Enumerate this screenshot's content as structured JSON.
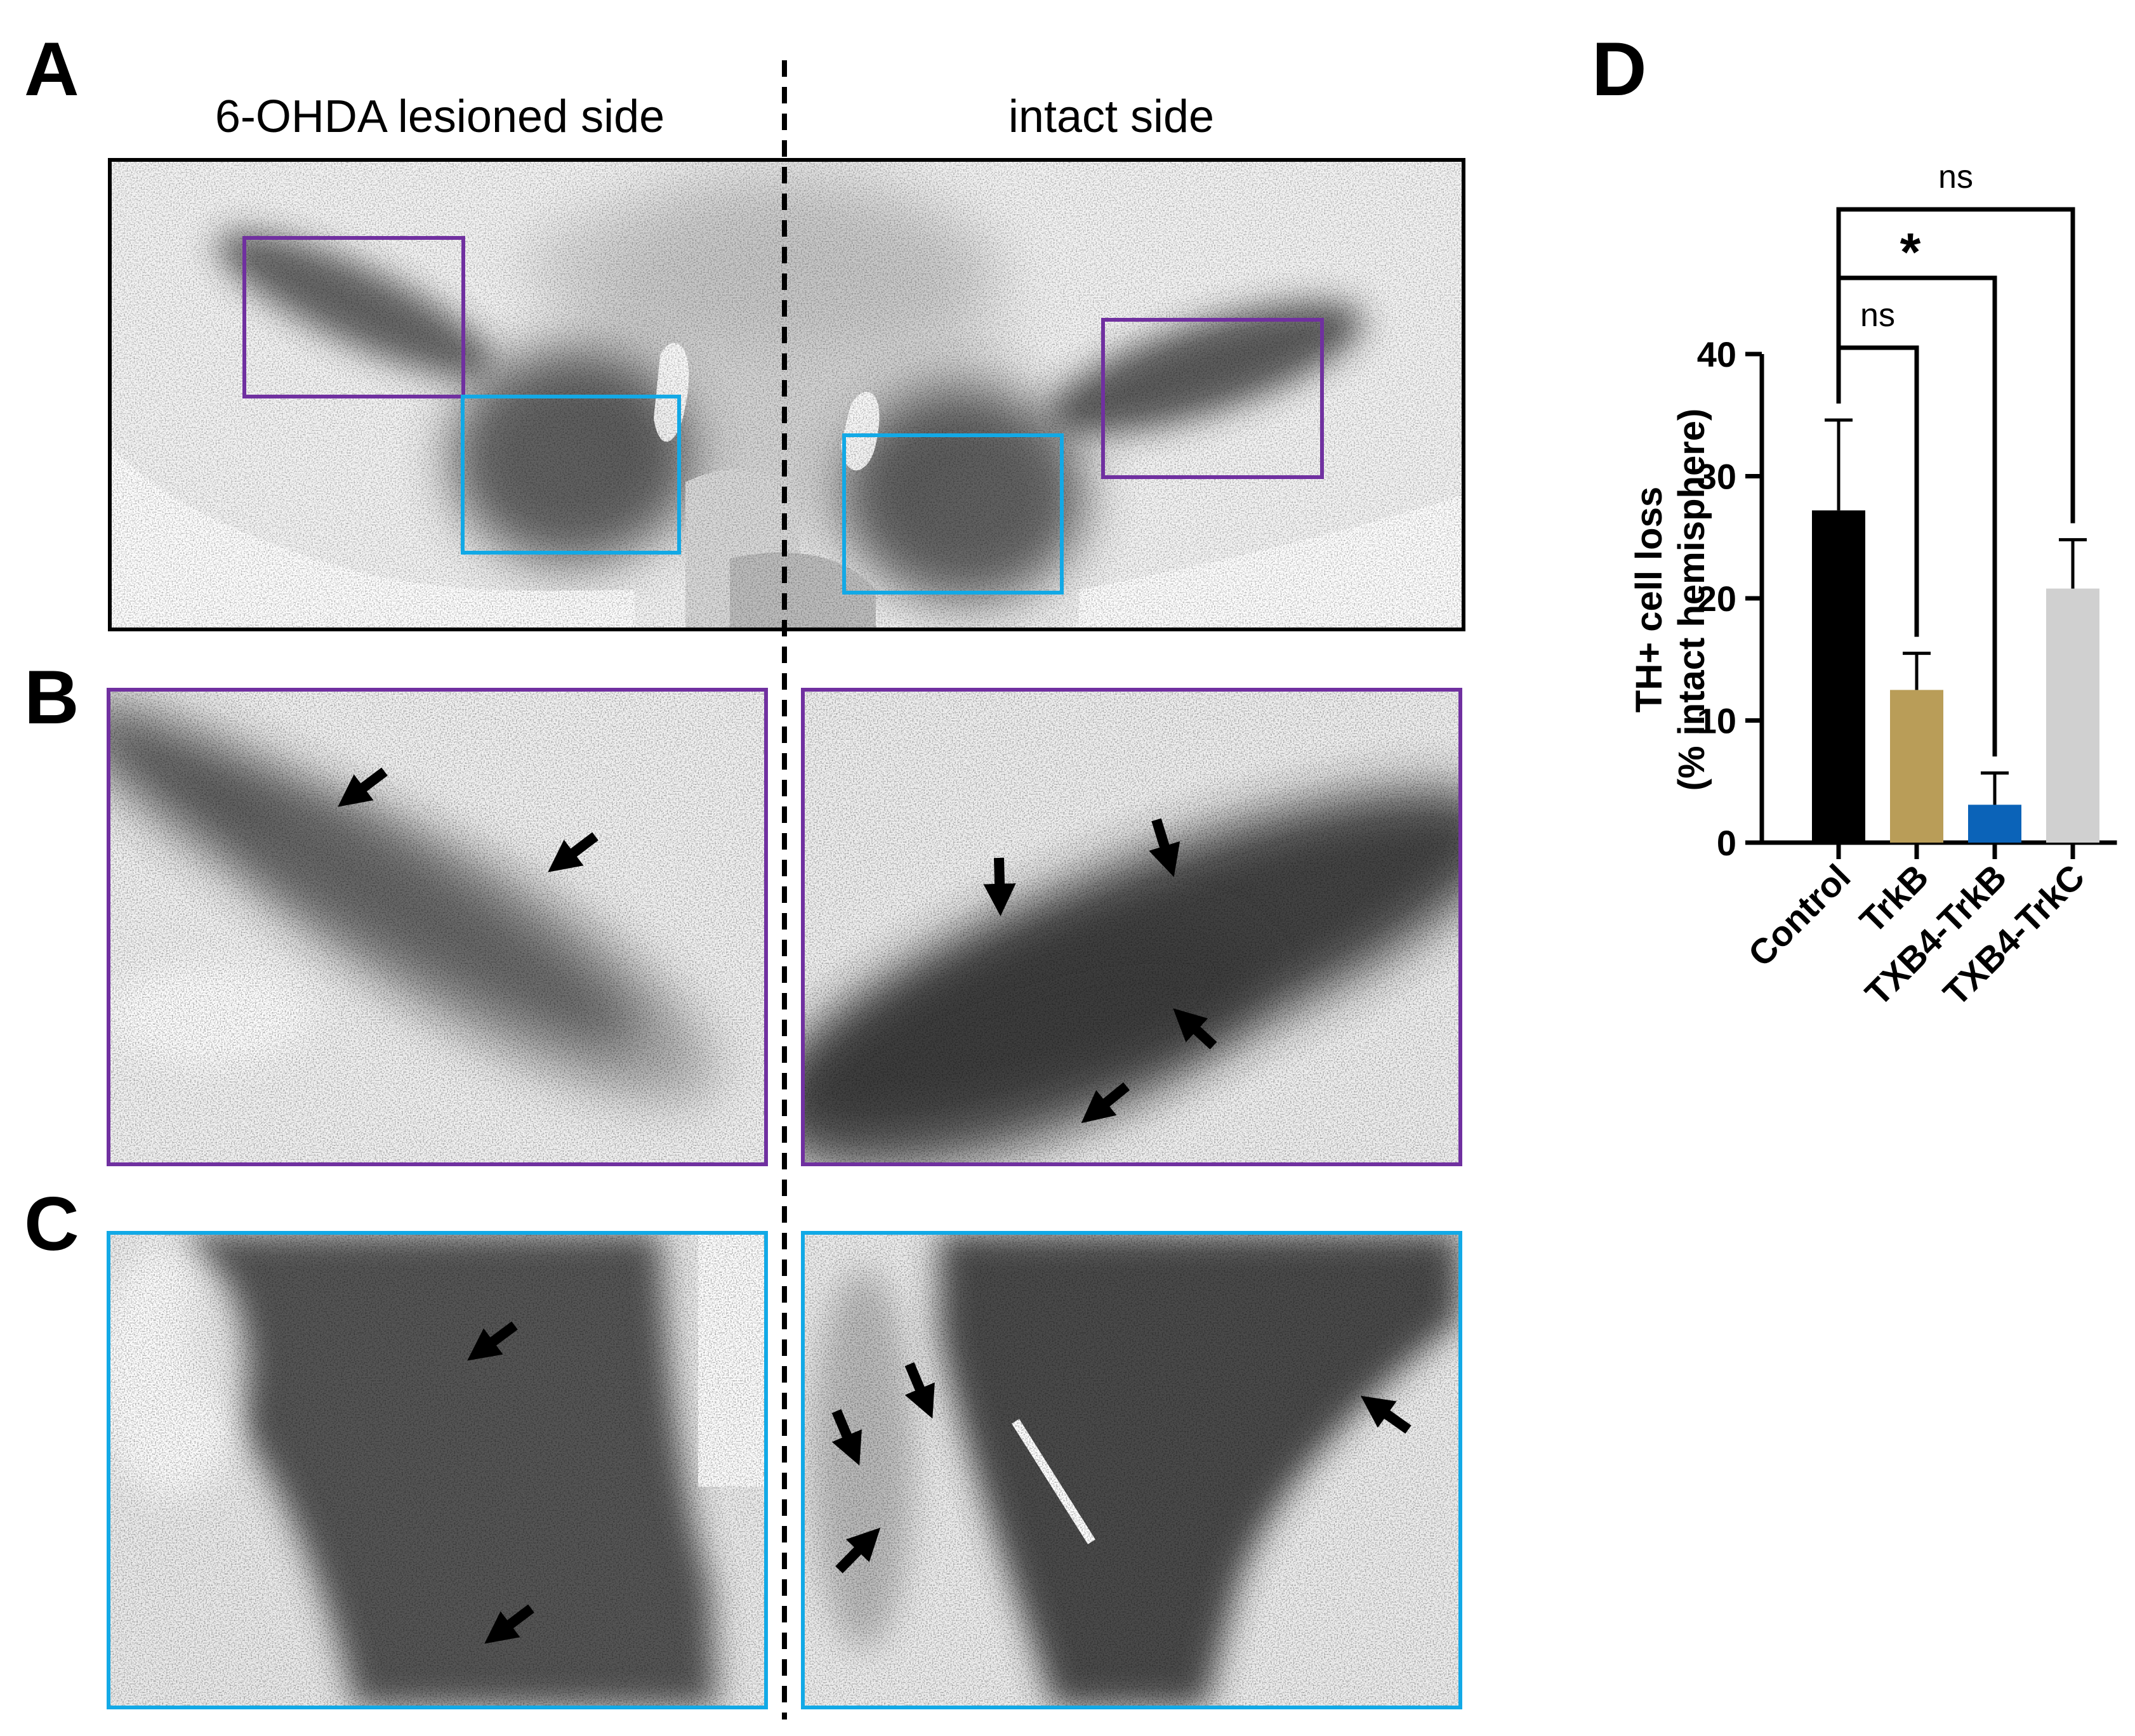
{
  "panels": {
    "a": {
      "letter": "A",
      "left_label": "6-OHDA lesioned side",
      "right_label": "intact side"
    },
    "b": {
      "letter": "B"
    },
    "c": {
      "letter": "C"
    },
    "d": {
      "letter": "D"
    }
  },
  "colors": {
    "roi_purple": "#7030a0",
    "roi_blue": "#12a9e6",
    "frame_black": "#000000",
    "tissue_dark": "#2e2e2e"
  },
  "chart_data": {
    "type": "bar",
    "title": "",
    "categories": [
      "Control",
      "TrkB",
      "TXB4-TrkB",
      "TXB4-TrkC"
    ],
    "values": [
      27.2,
      12.5,
      3.1,
      20.8
    ],
    "errors": [
      7.4,
      3.0,
      2.6,
      4.0
    ],
    "bar_colors": [
      "#000000",
      "#b99d58",
      "#0b63b8",
      "#d0d0d0"
    ],
    "ylabel_line1": "TH+ cell loss",
    "ylabel_line2": "(% intact hemisphere)",
    "xlabel": "",
    "ylim": [
      0,
      40
    ],
    "yticks": [
      0,
      10,
      20,
      30,
      40
    ],
    "comparisons": [
      {
        "from": "Control",
        "to": "TrkB",
        "label": "ns"
      },
      {
        "from": "Control",
        "to": "TXB4-TrkB",
        "label": "*"
      },
      {
        "from": "Control",
        "to": "TXB4-TrkC",
        "label": "ns"
      }
    ]
  }
}
